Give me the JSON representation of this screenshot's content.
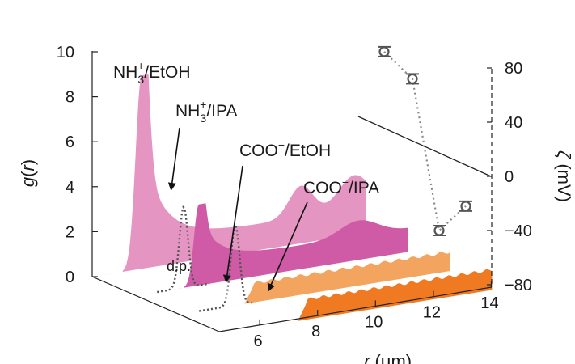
{
  "chart_data": {
    "type": "area",
    "left_axis": {
      "label_main": "g",
      "label_arg": "r",
      "ticks": [
        "0",
        "2",
        "4",
        "6",
        "8",
        "10"
      ],
      "range": [
        0,
        10
      ]
    },
    "bottom_axis": {
      "label_main": "r",
      "label_unit": "μm",
      "ticks": [
        "6",
        "8",
        "10",
        "12",
        "14"
      ]
    },
    "right_axis": {
      "label_main": "ζ",
      "label_unit": "mV",
      "ticks": [
        "80",
        "40",
        "0",
        "−40",
        "−80"
      ],
      "range": [
        -80,
        80
      ]
    },
    "series": [
      {
        "name": "NH₃⁺/EtOH",
        "label_base": "NH",
        "label_sub": "3",
        "label_sup": "+",
        "label_rest": "/EtOH",
        "color": "#e495c1",
        "peaks": [
          {
            "r": 5.9,
            "g": 8.6
          },
          {
            "r": 10.1,
            "g": 2.8
          },
          {
            "r": 11.5,
            "g": 3.0
          }
        ]
      },
      {
        "name": "NH₃⁺/IPA",
        "label_base": "NH",
        "label_sub": "3",
        "label_sup": "+",
        "label_rest": "/IPA",
        "color": "#cf5aa6",
        "peaks": [
          {
            "r": 6.3,
            "g": 3.6
          },
          {
            "r": 10.5,
            "g": 1.8
          }
        ]
      },
      {
        "name": "COO⁻/EtOH",
        "label_base": "COO",
        "label_sub": "",
        "label_sup": "−",
        "label_rest": "/EtOH",
        "color": "#f3a55f",
        "peaks": [
          {
            "r": 6.8,
            "g": 0.9
          }
        ]
      },
      {
        "name": "COO⁻/IPA",
        "label_base": "COO",
        "label_sub": "",
        "label_sup": "−",
        "label_rest": "/IPA",
        "color": "#ef7a22",
        "peaks": [
          {
            "r": 7.1,
            "g": 1.0
          }
        ]
      }
    ],
    "dp_label": "d.p.",
    "zeta_points": [
      {
        "series": "NH₃⁺/EtOH",
        "zeta": 92
      },
      {
        "series": "NH₃⁺/IPA",
        "zeta": 72
      },
      {
        "series": "COO⁻/EtOH",
        "zeta": -40
      },
      {
        "series": "COO⁻/IPA",
        "zeta": -22
      }
    ]
  }
}
